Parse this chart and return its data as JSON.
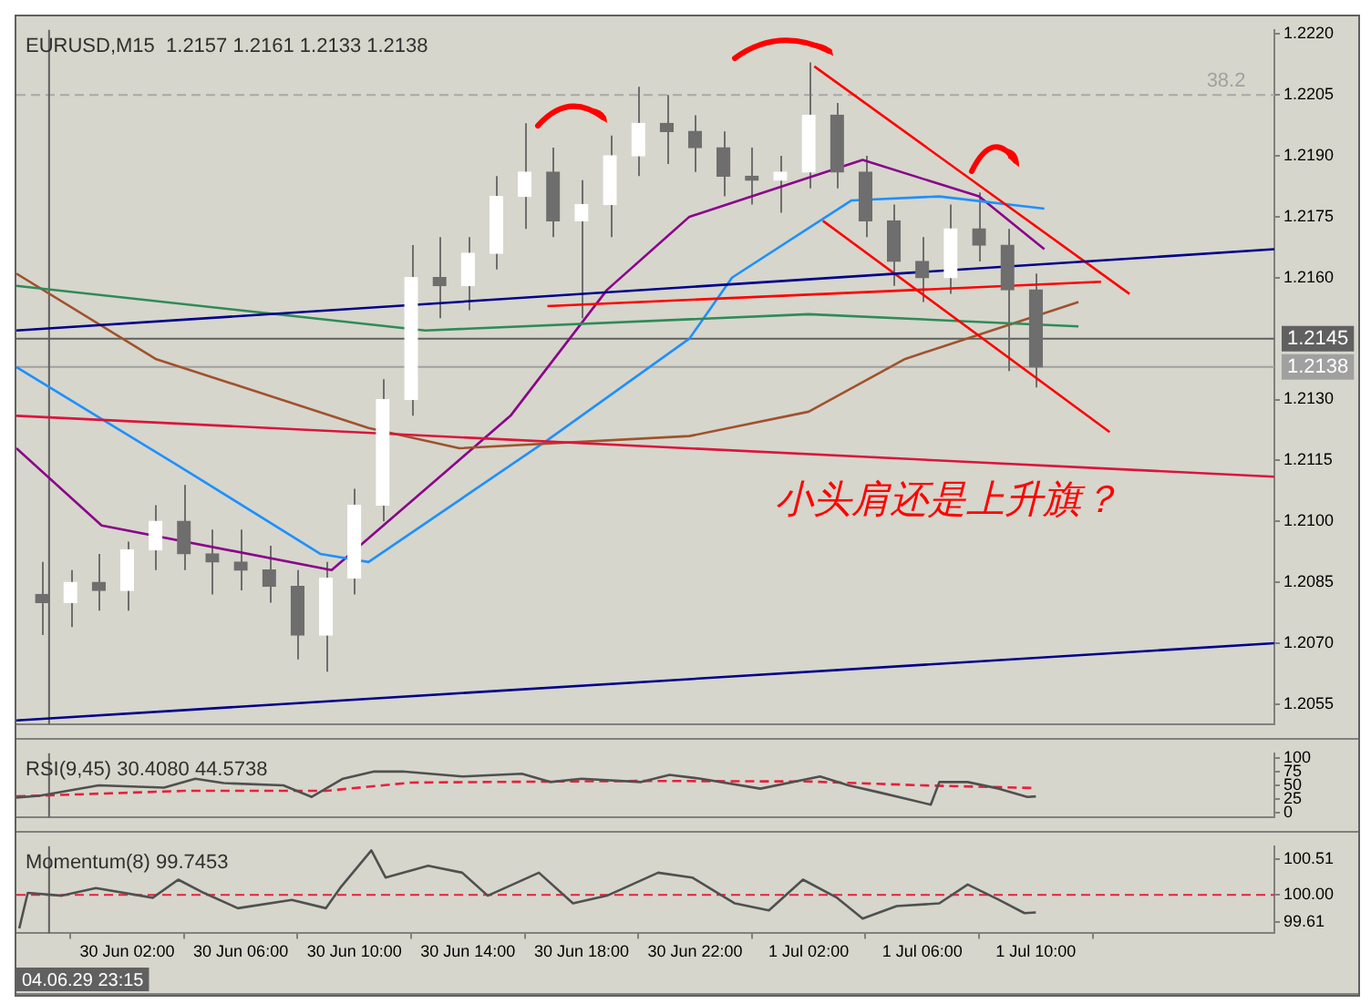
{
  "chart_data": [
    {
      "type": "candlestick",
      "title": "EURUSD,M15  1.2157 1.2161 1.2133 1.2138",
      "annotations": [
        "小头肩还是上升旗？",
        {
          "text": "38.2",
          "x": "--07-01T16:42",
          "y": 1.2205
        }
      ],
      "tick_labels": "y",
      "xlim": [
        "--06-29T22:06",
        "--07-01T18:24"
      ],
      "ylim": [
        1.205,
        1.2221
      ],
      "yticks": [
        1.2055,
        {
          "value": 1.207,
          "label": "1.2070"
        },
        1.2085,
        {
          "value": 1.21,
          "label": "1.2100"
        },
        1.2115,
        {
          "value": 1.213,
          "label": "1.2130"
        },
        {
          "value": 1.216,
          "label": "1.2160"
        },
        1.2175,
        {
          "value": 1.219,
          "label": "1.2190"
        },
        1.2205,
        {
          "value": 1.222,
          "label": "1.2220"
        }
      ],
      "ref_lines": [
        {
          "axis": "y",
          "value": 1.2145,
          "label": "1.2145",
          "color": "#606060"
        },
        {
          "axis": "y",
          "value": 1.2138,
          "label": "1.2138",
          "color": "#a0a0a0"
        },
        {
          "axis": "y",
          "value": 1.2205,
          "color": "#a8a8a8",
          "line_style": "dashed"
        },
        {
          "axis": "x",
          "value": "--06-29T23:15",
          "color": "#606060"
        }
      ],
      "x": [
        "--06-29T23:00",
        "--06-30T00:00",
        "--06-30T01:00",
        "--06-30T02:00",
        "--06-30T03:00",
        "--06-30T04:00",
        "--06-30T05:00",
        "--06-30T06:00",
        "--06-30T07:00",
        "--06-30T08:00",
        "--06-30T09:00",
        "--06-30T10:00",
        "--06-30T11:00",
        "--06-30T12:00",
        "--06-30T13:00",
        "--06-30T14:00",
        "--06-30T15:00",
        "--06-30T16:00",
        "--06-30T17:00",
        "--06-30T18:00",
        "--06-30T19:00",
        "--06-30T20:00",
        "--06-30T21:00",
        "--06-30T22:00",
        "--06-30T23:00",
        "--07-01T00:00",
        "--07-01T01:00",
        "--07-01T02:00",
        "--07-01T03:00",
        "--07-01T04:00",
        "--07-01T05:00",
        "--07-01T06:00",
        "--07-01T07:00",
        "--07-01T08:00",
        "--07-01T09:00",
        "--07-01T10:00"
      ],
      "ohlc": [
        [
          1.2082,
          1.209,
          1.2072,
          1.208
        ],
        [
          1.208,
          1.2088,
          1.2074,
          1.2085
        ],
        [
          1.2085,
          1.2092,
          1.2078,
          1.2083
        ],
        [
          1.2083,
          1.2095,
          1.2078,
          1.2093
        ],
        [
          1.2093,
          1.2104,
          1.2088,
          1.21
        ],
        [
          1.21,
          1.2109,
          1.2088,
          1.2092
        ],
        [
          1.2092,
          1.2098,
          1.2082,
          1.209
        ],
        [
          1.209,
          1.2098,
          1.2083,
          1.2088
        ],
        [
          1.2088,
          1.2094,
          1.208,
          1.2084
        ],
        [
          1.2084,
          1.2088,
          1.2066,
          1.2072
        ],
        [
          1.2072,
          1.209,
          1.2063,
          1.2086
        ],
        [
          1.2086,
          1.2108,
          1.2082,
          1.2104
        ],
        [
          1.2104,
          1.2135,
          1.21,
          1.213
        ],
        [
          1.213,
          1.2168,
          1.2126,
          1.216
        ],
        [
          1.216,
          1.217,
          1.215,
          1.2158
        ],
        [
          1.2158,
          1.217,
          1.2152,
          1.2166
        ],
        [
          1.2166,
          1.2185,
          1.2162,
          1.218
        ],
        [
          1.218,
          1.2198,
          1.2172,
          1.2186
        ],
        [
          1.2186,
          1.2192,
          1.217,
          1.2174
        ],
        [
          1.2174,
          1.2184,
          1.215,
          1.2178
        ],
        [
          1.2178,
          1.2195,
          1.217,
          1.219
        ],
        [
          1.219,
          1.2207,
          1.2185,
          1.2198
        ],
        [
          1.2198,
          1.2205,
          1.2188,
          1.2196
        ],
        [
          1.2196,
          1.22,
          1.2186,
          1.2192
        ],
        [
          1.2192,
          1.2196,
          1.218,
          1.2185
        ],
        [
          1.2185,
          1.2192,
          1.2178,
          1.2184
        ],
        [
          1.2184,
          1.219,
          1.2176,
          1.2186
        ],
        [
          1.2186,
          1.2213,
          1.2182,
          1.22
        ],
        [
          1.22,
          1.2203,
          1.2182,
          1.2186
        ],
        [
          1.2186,
          1.219,
          1.217,
          1.2174
        ],
        [
          1.2174,
          1.2178,
          1.2158,
          1.2164
        ],
        [
          1.2164,
          1.217,
          1.2154,
          1.216
        ],
        [
          1.216,
          1.2178,
          1.2156,
          1.2172
        ],
        [
          1.2172,
          1.2181,
          1.2164,
          1.2168
        ],
        [
          1.2168,
          1.2172,
          1.2137,
          1.2157
        ],
        [
          1.2157,
          1.2161,
          1.2133,
          1.2138
        ]
      ],
      "series": [
        {
          "type": "line",
          "color": "#00008b",
          "x": [
            "--06-29T22:06",
            "--07-01T18:24"
          ],
          "values": [
            1.2147,
            1.2167
          ]
        },
        {
          "type": "line",
          "color": "#00008b",
          "x": [
            "--06-29T22:06",
            "--07-01T18:24"
          ],
          "values": [
            1.2051,
            1.207
          ]
        },
        {
          "type": "line",
          "color": "#dc143c",
          "x": [
            "--06-29T22:06",
            "--07-01T18:24"
          ],
          "values": [
            1.2126,
            1.2111
          ]
        },
        {
          "type": "line",
          "color": "#ff0000",
          "x": [
            "--07-01T02:12",
            "--07-01T13:18"
          ],
          "values": [
            1.2212,
            1.2156
          ]
        },
        {
          "type": "line",
          "color": "#ff0000",
          "x": [
            "--07-01T02:30",
            "--07-01T12:36"
          ],
          "values": [
            1.2174,
            1.2122
          ]
        },
        {
          "type": "line",
          "color": "#ff0000",
          "x": [
            "--06-30T16:48",
            "--07-01T12:18"
          ],
          "values": [
            1.2153,
            1.2159
          ]
        },
        {
          "type": "line",
          "color": "#2e8b57",
          "x": [
            "--06-29T22:06",
            "--06-30T12:30",
            "--07-01T02:00",
            "--07-01T11:30"
          ],
          "values": [
            1.2158,
            1.2147,
            1.2151,
            1.2148
          ]
        },
        {
          "type": "line",
          "color": "#a0522d",
          "x": [
            "--06-29T22:06",
            "--06-30T03:00",
            "--06-30T10:30",
            "--06-30T13:42",
            "--06-30T21:48",
            "--07-01T02:00",
            "--07-01T05:24",
            "--07-01T11:30"
          ],
          "values": [
            1.2161,
            1.214,
            1.2123,
            1.2118,
            1.2121,
            1.2127,
            1.214,
            1.2154
          ]
        },
        {
          "type": "line",
          "color": "#1e90ff",
          "x": [
            "--06-29T22:06",
            "--06-30T04:12",
            "--06-30T08:48",
            "--06-30T10:30",
            "--06-30T16:48",
            "--06-30T21:48",
            "--06-30T23:18",
            "--07-01T03:30",
            "--07-01T06:36",
            "--07-01T10:18"
          ],
          "values": [
            1.2138,
            1.2112,
            1.2092,
            1.209,
            1.212,
            1.2145,
            1.216,
            1.2179,
            1.218,
            1.2177
          ]
        },
        {
          "type": "line",
          "color": "#8b008b",
          "x": [
            "--06-29T22:06",
            "--06-30T01:06",
            "--06-30T09:12",
            "--06-30T15:30",
            "--06-30T18:54",
            "--06-30T21:48",
            "--07-01T03:54",
            "--07-01T08:00",
            "--07-01T10:18"
          ],
          "values": [
            1.2118,
            1.2099,
            1.2088,
            1.2126,
            1.2157,
            1.2175,
            1.2189,
            1.218,
            1.2167
          ]
        }
      ]
    },
    {
      "type": "line",
      "title": "RSI(9,45) 30.4080 44.5738",
      "tick_labels": "y",
      "xlim": [
        "--06-29T22:06",
        "--07-01T18:24"
      ],
      "ylim": [
        -8,
        108
      ],
      "yticks": [
        0,
        25,
        50,
        75,
        100
      ],
      "ref_lines": [
        {
          "axis": "x",
          "value": "--06-29T23:15",
          "color": "#606060"
        }
      ],
      "series": [
        {
          "color": "#505050",
          "x": [
            "--06-29T22:06",
            "--06-29T22:54",
            "--06-30T01:00",
            "--06-30T03:18",
            "--06-30T04:24",
            "--06-30T05:24",
            "--06-30T07:30",
            "--06-30T08:30",
            "--06-30T09:36",
            "--06-30T10:42",
            "--06-30T11:42",
            "--06-30T13:48",
            "--06-30T15:54",
            "--06-30T16:54",
            "--06-30T18:00",
            "--06-30T20:06",
            "--06-30T21:06",
            "--06-30T22:12",
            "--07-01T00:18",
            "--07-01T02:24",
            "--07-01T03:24",
            "--07-01T04:30",
            "--07-01T05:30",
            "--07-01T06:18",
            "--07-01T06:36",
            "--07-01T07:36",
            "--07-01T08:42",
            "--07-01T09:42",
            "--07-01T10:00"
          ],
          "values": [
            28,
            31,
            50,
            46,
            62,
            54,
            50,
            29,
            62,
            75,
            75,
            66,
            71,
            56,
            62,
            56,
            69,
            62,
            44,
            66,
            50,
            37,
            25,
            15,
            56,
            56,
            44,
            29,
            30
          ]
        },
        {
          "color": "#e8203c",
          "line_style": "dashed",
          "x": [
            "--06-29T22:06",
            "--06-30T04:00",
            "--06-30T09:00",
            "--06-30T12:00",
            "--06-30T20:00",
            "--07-01T02:00",
            "--07-01T06:00",
            "--07-01T10:00"
          ],
          "values": [
            30,
            40,
            40,
            55,
            58,
            57,
            50,
            45
          ]
        }
      ]
    },
    {
      "type": "line",
      "title": "Momentum(8) 99.7453",
      "annotations": [
        "04.06.29 23:15"
      ],
      "xlim": [
        "--06-29T22:06",
        "--07-01T18:24"
      ],
      "xticks": [
        {
          "value": "--06-30T02:00",
          "label": "30 Jun 02:00"
        },
        {
          "value": "--06-30T06:00",
          "label": "30 Jun 06:00"
        },
        {
          "value": "--06-30T10:00",
          "label": "30 Jun 10:00"
        },
        {
          "value": "--06-30T14:00",
          "label": "30 Jun 14:00"
        },
        {
          "value": "--06-30T18:00",
          "label": "30 Jun 18:00"
        },
        {
          "value": "--06-30T22:00",
          "label": "30 Jun 22:00"
        },
        {
          "value": "--07-01T02:00",
          "label": "1 Jul 02:00"
        },
        {
          "value": "--07-01T06:00",
          "label": "1 Jul 06:00"
        },
        {
          "value": "--07-01T10:00",
          "label": "1 Jul 10:00"
        }
      ],
      "ylim": [
        99.45,
        100.7
      ],
      "yticks": [
        99.61,
        {
          "value": 100,
          "label": "100.00"
        },
        100.51
      ],
      "ref_lines": [
        {
          "axis": "y",
          "value": 100,
          "color": "#e8203c",
          "line_style": "dashed"
        },
        {
          "axis": "x",
          "value": "--06-29T23:15",
          "color": "#606060"
        }
      ],
      "series": [
        {
          "color": "#505050",
          "x": [
            "--06-29T22:12",
            "--06-29T22:30",
            "--06-29T23:42",
            "--06-30T00:54",
            "--06-30T02:54",
            "--06-30T03:48",
            "--06-30T04:42",
            "--06-30T05:54",
            "--06-30T07:48",
            "--06-30T09:00",
            "--06-30T09:30",
            "--06-30T10:36",
            "--06-30T11:06",
            "--06-30T12:36",
            "--06-30T13:48",
            "--06-30T14:42",
            "--06-30T16:30",
            "--06-30T17:42",
            "--06-30T18:54",
            "--06-30T20:42",
            "--06-30T21:54",
            "--06-30T23:24",
            "--07-01T00:36",
            "--07-01T01:48",
            "--07-01T03:00",
            "--07-01T03:54",
            "--07-01T05:06",
            "--07-01T06:36",
            "--07-01T07:36",
            "--07-01T08:42",
            "--07-01T09:36",
            "--07-01T10:00"
          ],
          "values": [
            99.52,
            100.03,
            99.99,
            100.1,
            99.96,
            100.22,
            100.03,
            99.81,
            99.93,
            99.81,
            100.1,
            100.64,
            100.25,
            100.42,
            100.32,
            99.99,
            100.32,
            99.88,
            99.99,
            100.32,
            100.25,
            99.88,
            99.78,
            100.22,
            99.96,
            99.66,
            99.84,
            99.88,
            100.15,
            99.93,
            99.74,
            99.75
          ]
        }
      ]
    }
  ]
}
